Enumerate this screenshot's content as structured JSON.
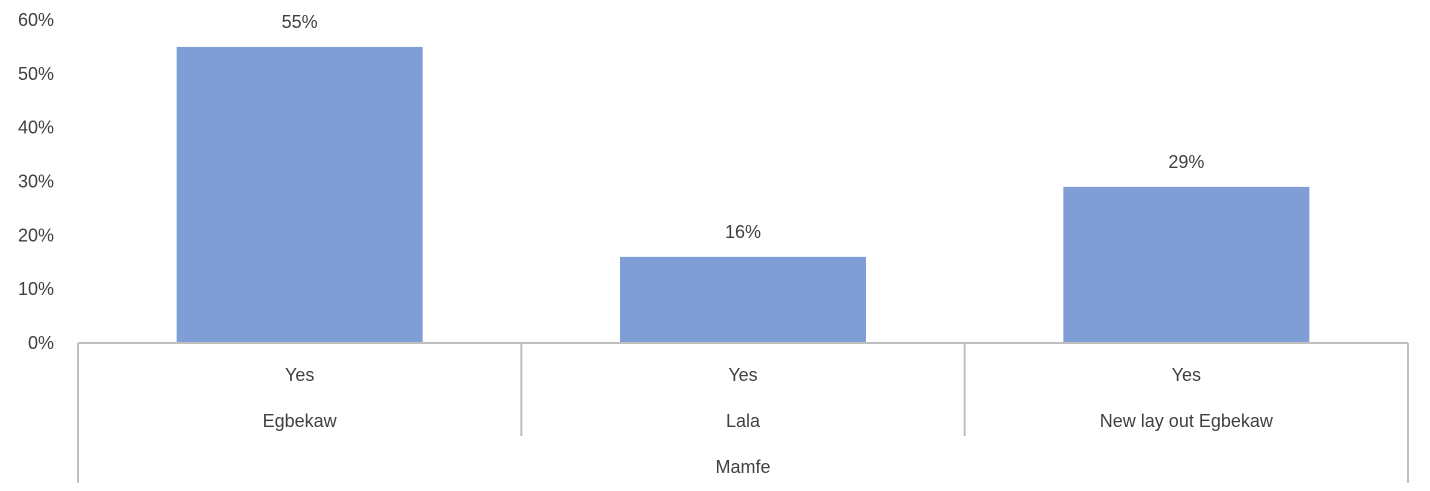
{
  "chart_data": {
    "type": "bar",
    "categories": [
      {
        "level1": "Yes",
        "level2": "Egbekaw"
      },
      {
        "level1": "Yes",
        "level2": "Lala"
      },
      {
        "level1": "Yes",
        "level2": "New lay out Egbekaw"
      }
    ],
    "group_label": "Mamfe",
    "values": [
      0.55,
      0.16,
      0.29
    ],
    "data_labels": [
      "55%",
      "16%",
      "29%"
    ],
    "yticks": [
      "0%",
      "10%",
      "20%",
      "30%",
      "40%",
      "50%",
      "60%"
    ],
    "ylim": [
      0,
      0.6
    ],
    "grid": false,
    "legend": "none",
    "colors": {
      "bar": "#7f9ed6",
      "axis": "#bfbfbf",
      "text": "#404040"
    }
  }
}
